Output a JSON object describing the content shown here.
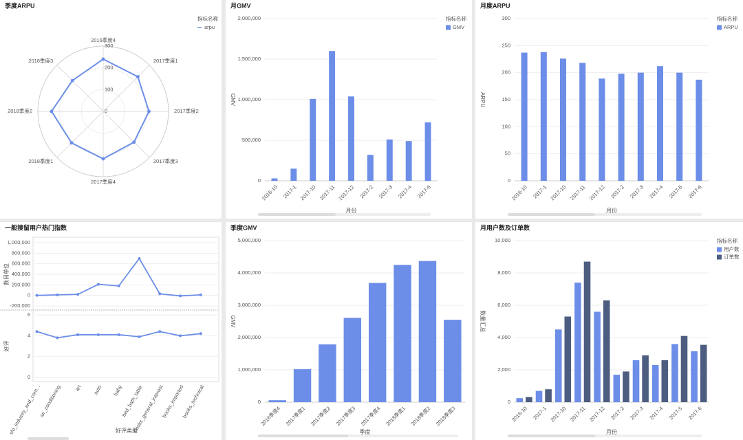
{
  "chart_data": [
    {
      "type": "radar",
      "title": "季度ARPU",
      "legend_title": "指标名称",
      "categories": [
        "2016季度4",
        "2017季度1",
        "2017季度2",
        "2017季度3",
        "2017季度4",
        "2018季度1",
        "2018季度2",
        "2018季度3"
      ],
      "series": [
        {
          "name": "arpu",
          "color": "#6c8ee8",
          "values": [
            240,
            225,
            210,
            200,
            218,
            205,
            237,
            200
          ]
        }
      ],
      "rlim": [
        0,
        300
      ],
      "rticks": [
        0,
        100,
        200,
        300
      ]
    },
    {
      "type": "bar",
      "title": "月GMV",
      "legend_title": "指标名称",
      "ylabel": "GMV",
      "xlabel": "月份",
      "categories": [
        "2016-10",
        "2017-1",
        "2017-10",
        "2017-11",
        "2017-12",
        "2017-2",
        "2017-3",
        "2017-4",
        "2017-5"
      ],
      "series": [
        {
          "name": "GMV",
          "color": "#6c8ee8",
          "values": [
            30000,
            150000,
            1010000,
            1600000,
            1040000,
            320000,
            510000,
            490000,
            720000
          ]
        }
      ],
      "ylim": [
        0,
        2000000
      ],
      "yticks": [
        0,
        {
          "value": 500000,
          "label": "500,000"
        },
        {
          "value": 1000000,
          "label": "1,000,000"
        },
        {
          "value": 1500000,
          "label": "1,500,000"
        },
        {
          "value": 2000000,
          "label": "2,000,000"
        }
      ]
    },
    {
      "type": "bar",
      "title": "月度ARPU",
      "legend_title": "指标名称",
      "ylabel": "ARPU",
      "xlabel": "月份",
      "categories": [
        "2016-10",
        "2017-1",
        "2017-10",
        "2017-11",
        "2017-12",
        "2017-2",
        "2017-3",
        "2017-4",
        "2017-5",
        "2017-6"
      ],
      "series": [
        {
          "name": "ARPU",
          "color": "#6c8ee8",
          "values": [
            237,
            238,
            226,
            218,
            189,
            198,
            200,
            212,
            200,
            187
          ]
        }
      ],
      "ylim": [
        0,
        300
      ],
      "yticks": [
        0,
        50,
        100,
        150,
        200,
        250,
        300
      ]
    },
    {
      "type": "line",
      "title": "一般搜留用户热门指数",
      "xlabel": "好评类型",
      "color": "#6c8ee8",
      "categories": [
        "sfo_industry_and_com...",
        "air_conditioning",
        "art",
        "auto",
        "baby",
        "bed_bath_table",
        "books_general_interest",
        "books_imported",
        "books_technical"
      ],
      "panels": [
        {
          "ylabel": "数目单位",
          "ylim": [
            -200000,
            1000000
          ],
          "yticks": [
            {
              "value": -200000,
              "label": "-200,000"
            },
            0,
            {
              "value": 200000,
              "label": "200,000"
            },
            {
              "value": 400000,
              "label": "400,000"
            },
            {
              "value": 600000,
              "label": "600,000"
            },
            {
              "value": 800000,
              "label": "800,000"
            },
            {
              "value": 1000000,
              "label": "1,000,000"
            }
          ],
          "values": [
            0,
            10000,
            20000,
            210000,
            180000,
            700000,
            30000,
            -10000,
            10000
          ]
        },
        {
          "ylabel": "好评",
          "ylim": [
            0,
            6
          ],
          "yticks": [
            0,
            2,
            4,
            6
          ],
          "values": [
            4.4,
            3.8,
            4.1,
            4.1,
            4.1,
            3.9,
            4.4,
            4.0,
            4.2
          ]
        }
      ]
    },
    {
      "type": "bar",
      "title": "季度GMV",
      "ylabel": "GMV",
      "xlabel": "季度",
      "categories": [
        "2016季度4",
        "2017季度1",
        "2017季度2",
        "2017季度3",
        "2017季度4",
        "2018季度1",
        "2018季度2",
        "2018季度3"
      ],
      "series": [
        {
          "color": "#6c8ee8",
          "values": [
            60000,
            1020000,
            1790000,
            2610000,
            3690000,
            4250000,
            4370000,
            2550000
          ]
        }
      ],
      "ylim": [
        0,
        5000000
      ],
      "yticks": [
        0,
        {
          "value": 1000000,
          "label": "1,000,000"
        },
        {
          "value": 2000000,
          "label": "2,000,000"
        },
        {
          "value": 3000000,
          "label": "3,000,000"
        },
        {
          "value": 4000000,
          "label": "4,000,000"
        },
        {
          "value": 5000000,
          "label": "5,000,000"
        }
      ]
    },
    {
      "type": "bar",
      "title": "月用户数及订单数",
      "legend_title": "指标名称",
      "ylabel": "数量汇总",
      "xlabel": "月份",
      "categories": [
        "2016-10",
        "2017-1",
        "2017-10",
        "2017-11",
        "2017-12",
        "2017-2",
        "2017-3",
        "2017-4",
        "2017-5",
        "2017-6"
      ],
      "series": [
        {
          "name": "用户数",
          "color": "#6c8ee8",
          "values": [
            250,
            700,
            4500,
            7400,
            5600,
            1700,
            2600,
            2300,
            3600,
            3150
          ]
        },
        {
          "name": "订单数",
          "color": "#4c5d80",
          "values": [
            320,
            800,
            5300,
            8700,
            6300,
            1900,
            2900,
            2600,
            4100,
            3550
          ]
        }
      ],
      "ylim": [
        0,
        10000
      ],
      "yticks": [
        0,
        {
          "value": 2000,
          "label": "2,000"
        },
        {
          "value": 4000,
          "label": "4,000"
        },
        {
          "value": 6000,
          "label": "6,000"
        },
        {
          "value": 8000,
          "label": "8,000"
        },
        {
          "value": 10000,
          "label": "10,000"
        }
      ]
    }
  ]
}
